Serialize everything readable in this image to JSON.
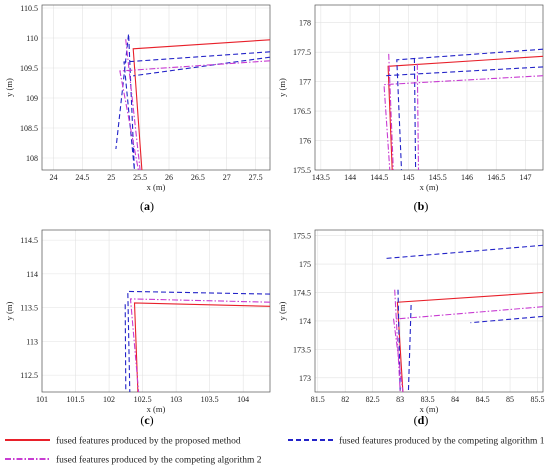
{
  "legend": [
    {
      "name": "fused features produced by the proposed method",
      "color": "#e8202a",
      "dash": "solid"
    },
    {
      "name": "fused features produced by the competing algorithm 1",
      "color": "#2323c8",
      "dash": "dashed"
    },
    {
      "name": "fused features produced by the competing algorithm 2",
      "color": "#c83cd2",
      "dash": "dashdot"
    }
  ],
  "chart_data": [
    {
      "panel": "(a)",
      "type": "line",
      "xlabel": "x (m)",
      "ylabel": "y (m)",
      "xlim": [
        23.8,
        27.75
      ],
      "ylim": [
        107.8,
        110.55
      ],
      "xticks": [
        24,
        24.5,
        25,
        25.5,
        26,
        26.5,
        27,
        27.5
      ],
      "yticks": [
        108,
        108.5,
        109,
        109.5,
        110,
        110.5
      ],
      "series": [
        {
          "style": 0,
          "x": [
            27.75,
            25.38,
            25.53
          ],
          "y": [
            109.97,
            109.82,
            107.8
          ]
        },
        {
          "style": 1,
          "x": [
            27.75,
            25.22,
            25.4,
            25.3,
            25.08
          ],
          "y": [
            109.77,
            109.6,
            107.8,
            110.07,
            108.15
          ]
        },
        {
          "style": 1,
          "x": [
            27.75,
            25.38
          ],
          "y": [
            109.68,
            109.37
          ]
        },
        {
          "style": 2,
          "x": [
            27.75,
            25.15,
            25.47
          ],
          "y": [
            109.62,
            109.45,
            107.8
          ]
        },
        {
          "style": 2,
          "x": [
            25.25,
            25.5
          ],
          "y": [
            109.98,
            107.8
          ]
        }
      ]
    },
    {
      "panel": "(b)",
      "type": "line",
      "xlabel": "x (m)",
      "ylabel": "y (m)",
      "xlim": [
        143.4,
        147.3
      ],
      "ylim": [
        175.5,
        178.3
      ],
      "xticks": [
        143.5,
        144,
        144.5,
        145,
        145.5,
        146,
        146.5,
        147
      ],
      "yticks": [
        175.5,
        176,
        176.5,
        177,
        177.5,
        178
      ],
      "series": [
        {
          "style": 0,
          "x": [
            147.3,
            144.65,
            144.72
          ],
          "y": [
            177.43,
            177.26,
            175.5
          ]
        },
        {
          "style": 1,
          "x": [
            147.3,
            144.8,
            144.88
          ],
          "y": [
            177.55,
            177.37,
            175.5
          ]
        },
        {
          "style": 1,
          "x": [
            147.3,
            144.6
          ],
          "y": [
            177.25,
            177.1
          ]
        },
        {
          "style": 1,
          "x": [
            145.1,
            145.12
          ],
          "y": [
            177.4,
            175.5
          ]
        },
        {
          "style": 2,
          "x": [
            147.3,
            144.58,
            144.68
          ],
          "y": [
            177.1,
            176.95,
            175.5
          ]
        },
        {
          "style": 2,
          "x": [
            144.66,
            144.74
          ],
          "y": [
            177.47,
            175.5
          ]
        },
        {
          "style": 2,
          "x": [
            145.15,
            145.17
          ],
          "y": [
            177.3,
            175.5
          ]
        }
      ]
    },
    {
      "panel": "(c)",
      "type": "line",
      "xlabel": "x (m)",
      "ylabel": "y (m)",
      "xlim": [
        101.0,
        104.4
      ],
      "ylim": [
        112.25,
        114.65
      ],
      "xticks": [
        101,
        101.5,
        102,
        102.5,
        103,
        103.5,
        104
      ],
      "yticks": [
        112.5,
        113,
        113.5,
        114,
        114.5
      ],
      "series": [
        {
          "style": 0,
          "x": [
            104.4,
            102.38,
            102.43
          ],
          "y": [
            113.52,
            113.57,
            112.25
          ]
        },
        {
          "style": 1,
          "x": [
            104.4,
            102.28,
            102.31
          ],
          "y": [
            113.7,
            113.74,
            112.25
          ]
        },
        {
          "style": 1,
          "x": [
            102.24,
            102.25
          ],
          "y": [
            113.55,
            112.25
          ]
        },
        {
          "style": 2,
          "x": [
            104.4,
            102.32,
            102.44
          ],
          "y": [
            113.58,
            113.63,
            112.25
          ]
        }
      ]
    },
    {
      "panel": "(d)",
      "type": "line",
      "xlabel": "x (m)",
      "ylabel": "y (m)",
      "xlim": [
        81.45,
        85.6
      ],
      "ylim": [
        172.75,
        175.6
      ],
      "xticks": [
        81.5,
        82,
        82.5,
        83,
        83.5,
        84,
        84.5,
        85,
        85.5
      ],
      "yticks": [
        173,
        173.5,
        174,
        174.5,
        175,
        175.5
      ],
      "series": [
        {
          "style": 0,
          "x": [
            85.6,
            82.95,
            83.05
          ],
          "y": [
            174.5,
            174.33,
            172.75
          ]
        },
        {
          "style": 1,
          "x": [
            85.6,
            82.75
          ],
          "y": [
            175.33,
            175.1
          ]
        },
        {
          "style": 1,
          "x": [
            85.6,
            84.28
          ],
          "y": [
            174.08,
            173.97
          ]
        },
        {
          "style": 1,
          "x": [
            82.96,
            83.0
          ],
          "y": [
            174.55,
            172.75
          ]
        },
        {
          "style": 1,
          "x": [
            83.2,
            83.15
          ],
          "y": [
            174.28,
            172.75
          ]
        },
        {
          "style": 2,
          "x": [
            85.6,
            82.88,
            83.05
          ],
          "y": [
            174.25,
            174.03,
            172.75
          ]
        },
        {
          "style": 2,
          "x": [
            82.9,
            83.0
          ],
          "y": [
            174.55,
            172.75
          ]
        }
      ]
    }
  ]
}
